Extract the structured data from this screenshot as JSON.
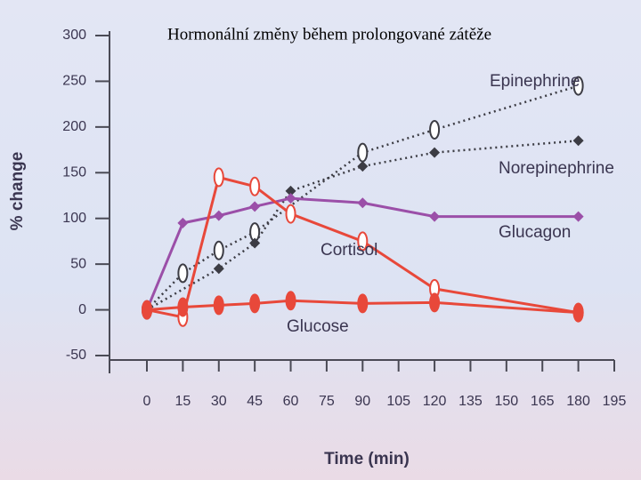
{
  "chart_data": {
    "type": "line",
    "title": "Hormonální změny během prolongované zátěže",
    "y_label": "% change",
    "x_label": "Time (min)",
    "xlim": [
      0,
      195
    ],
    "xticks": [
      0,
      15,
      30,
      45,
      60,
      75,
      90,
      105,
      120,
      135,
      150,
      165,
      180,
      195
    ],
    "ylim": [
      -50,
      300
    ],
    "yticks": [
      -50,
      0,
      50,
      100,
      150,
      200,
      250,
      300
    ],
    "series": [
      {
        "name": "Epinephrine",
        "color": "#3c3c44",
        "style": "dotted",
        "marker": "open-oval",
        "x": [
          0,
          15,
          30,
          45,
          90,
          120,
          180
        ],
        "values": [
          0,
          40,
          65,
          85,
          172,
          197,
          245
        ]
      },
      {
        "name": "Norepinephrine",
        "color": "#3c3c44",
        "style": "dotted",
        "marker": "diamond",
        "x": [
          0,
          30,
          45,
          60,
          90,
          120,
          180
        ],
        "values": [
          0,
          45,
          73,
          130,
          157,
          172,
          185
        ]
      },
      {
        "name": "Glucagon",
        "color": "#9b4fa8",
        "style": "solid",
        "marker": "diamond",
        "x": [
          0,
          15,
          30,
          45,
          60,
          90,
          120,
          180
        ],
        "values": [
          0,
          95,
          103,
          113,
          122,
          117,
          102,
          102
        ]
      },
      {
        "name": "Cortisol",
        "color": "#e8483a",
        "style": "solid",
        "marker": "open-oval",
        "x": [
          0,
          15,
          30,
          45,
          60,
          90,
          120,
          180
        ],
        "values": [
          0,
          -8,
          145,
          135,
          105,
          75,
          23,
          -3
        ]
      },
      {
        "name": "Glucose",
        "color": "#e8483a",
        "style": "solid",
        "marker": "oval",
        "x": [
          0,
          15,
          30,
          45,
          60,
          90,
          120,
          180
        ],
        "values": [
          0,
          3,
          5,
          7,
          10,
          7,
          8,
          -3
        ]
      }
    ]
  }
}
